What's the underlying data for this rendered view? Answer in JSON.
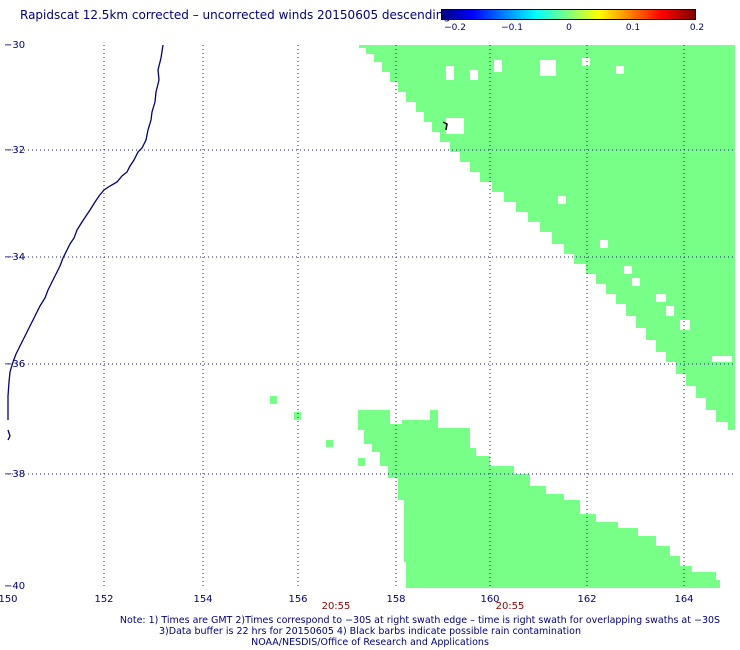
{
  "title": "Rapidscat 12.5km corrected – uncorrected winds 20150605 descending",
  "colorbar": {
    "ticks": [
      "−0.2",
      "−0.1",
      "0",
      "0.1",
      "0.2"
    ],
    "colors": [
      "#00007f",
      "#0000ff",
      "#00ffff",
      "#7fff7f",
      "#ffff00",
      "#ff0000",
      "#7f0000"
    ]
  },
  "map": {
    "lon_range": [
      150,
      164.8
    ],
    "lat_range": [
      -30,
      -40
    ],
    "lon_ticks": [
      "150",
      "152",
      "154",
      "156",
      "158",
      "160",
      "162",
      "164"
    ],
    "lat_ticks": [
      "−30",
      "−32",
      "−34",
      "−36",
      "−38",
      "−40"
    ],
    "times": [
      "20:55",
      "20:55"
    ],
    "swath_color": "#77ff88",
    "coast_color": "#000080"
  },
  "notes": {
    "line1": "Note: 1) Times are GMT 2)Times correspond to −30S at right swath edge – time is right swath for overlapping swaths at −30S",
    "line2": "3)Data buffer is 22 hrs for 20150605 4) Black barbs indicate possible rain contamination",
    "line3": "NOAA/NESDIS/Office of Research and Applications"
  }
}
